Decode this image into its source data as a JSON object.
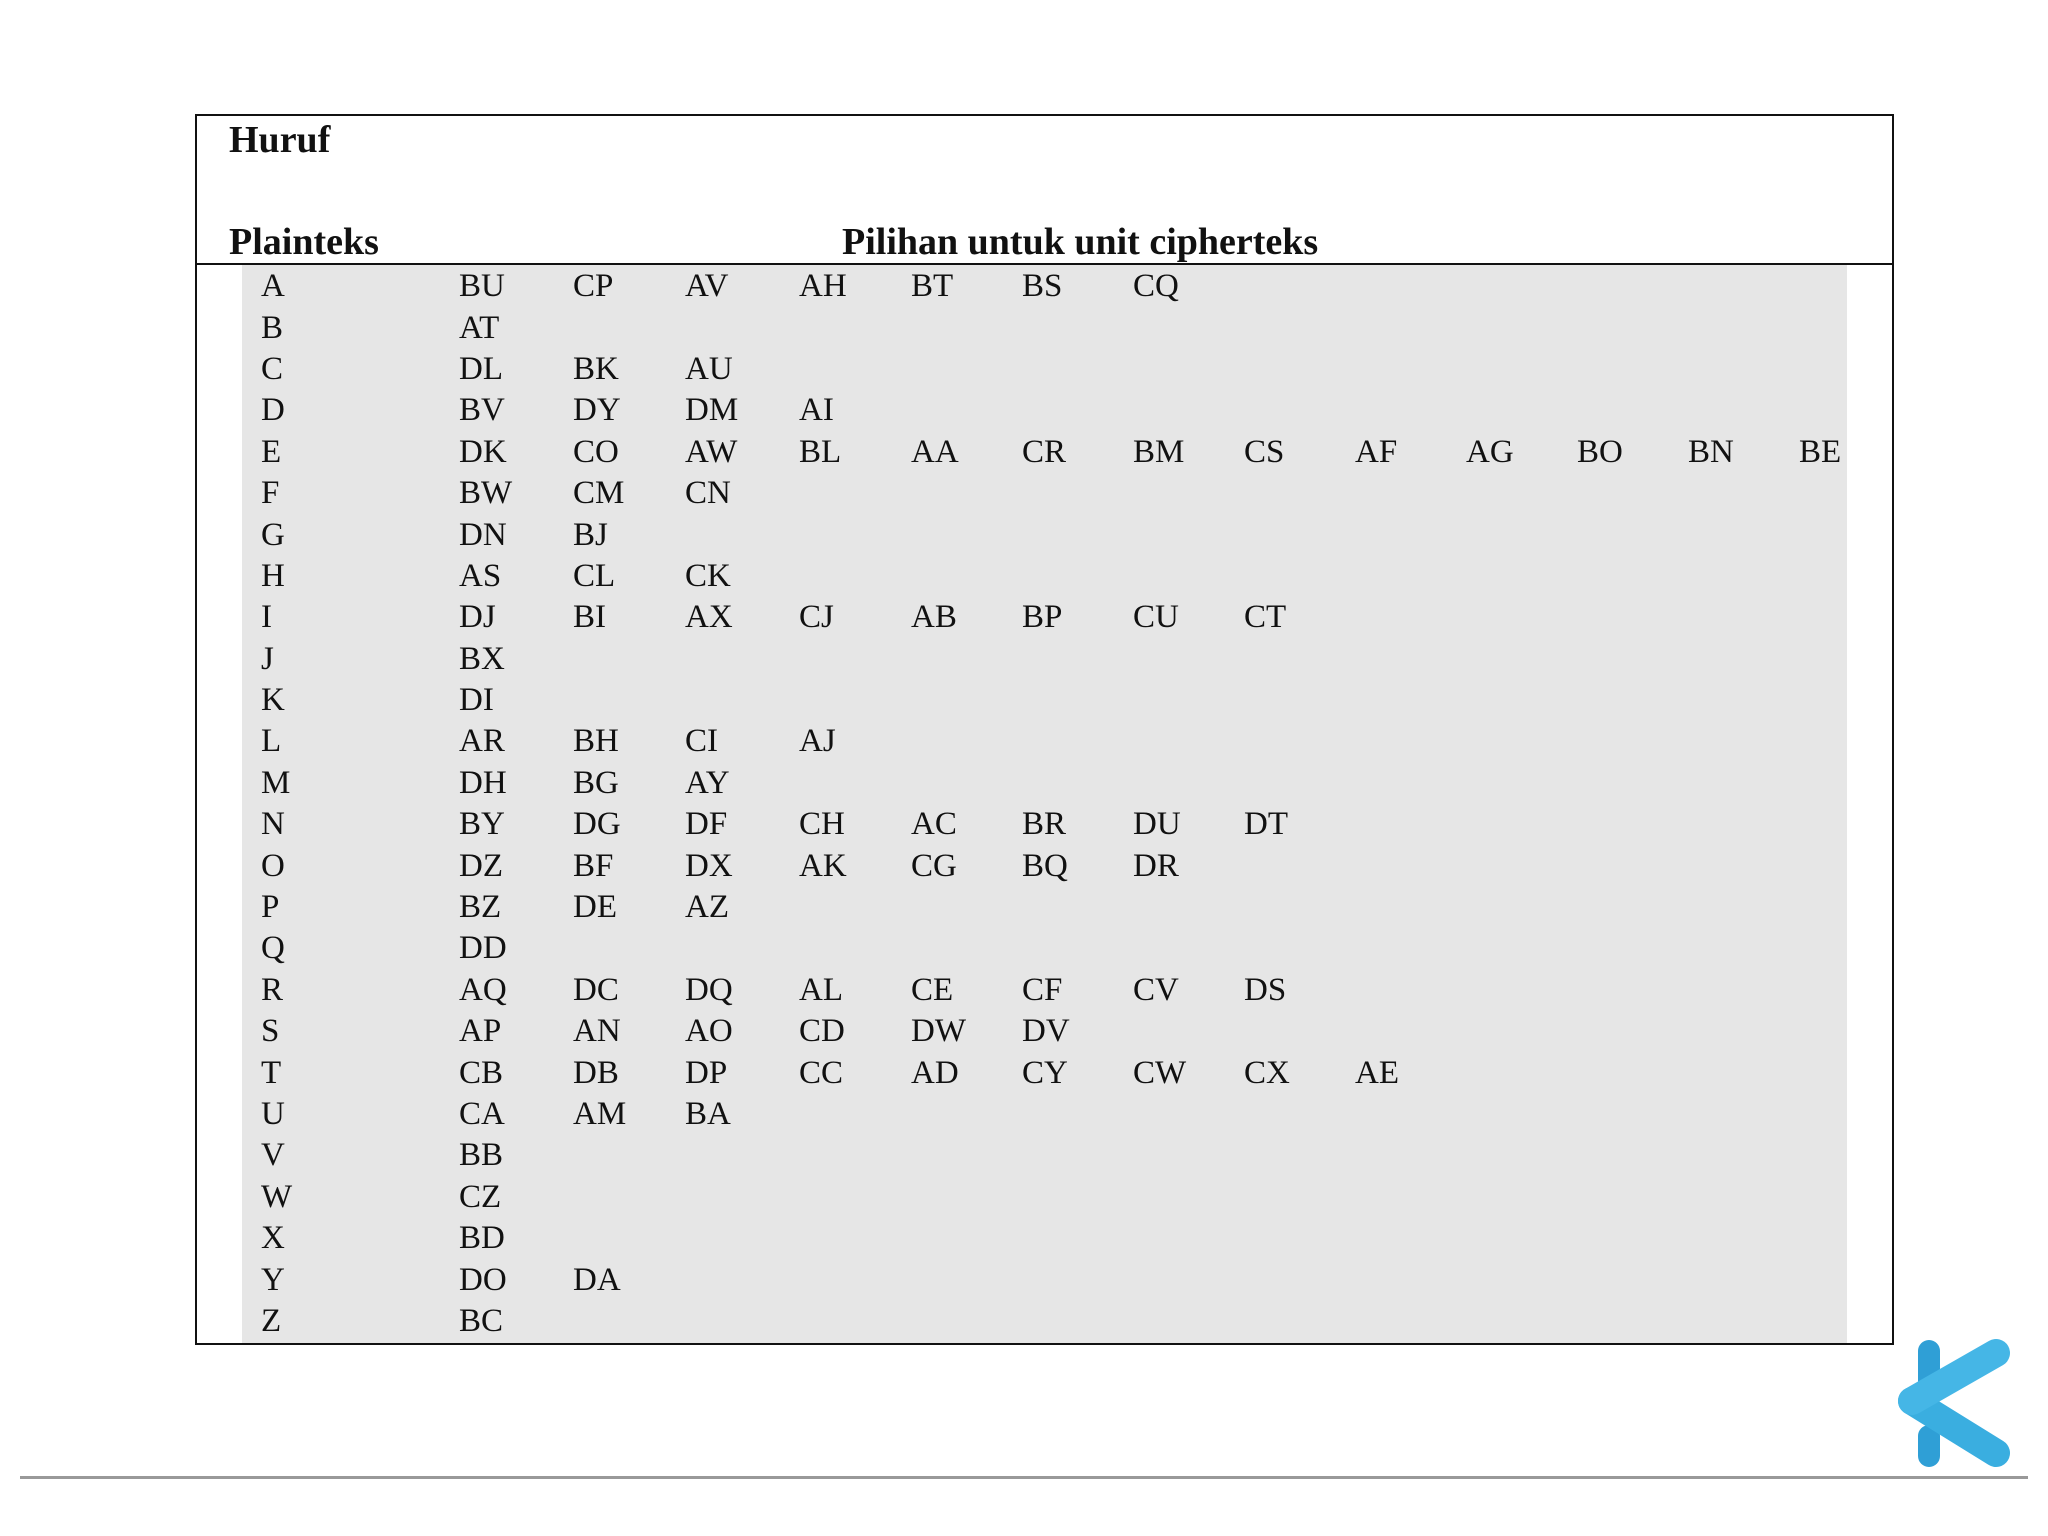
{
  "header": {
    "title": "Huruf",
    "plain_label": "Plainteks",
    "options_label": "Pilihan untuk unit cipherteks"
  },
  "rows": [
    {
      "plain": "A",
      "cipher": [
        "BU",
        "CP",
        "AV",
        "AH",
        "BT",
        "BS",
        "CQ"
      ]
    },
    {
      "plain": "B",
      "cipher": [
        "AT"
      ]
    },
    {
      "plain": "C",
      "cipher": [
        "DL",
        "BK",
        "AU"
      ]
    },
    {
      "plain": "D",
      "cipher": [
        "BV",
        "DY",
        "DM",
        "AI"
      ]
    },
    {
      "plain": "E",
      "cipher": [
        "DK",
        "CO",
        "AW",
        "BL",
        "AA",
        "CR",
        "BM",
        "CS",
        "AF",
        "AG",
        "BO",
        "BN",
        "BE"
      ]
    },
    {
      "plain": "F",
      "cipher": [
        "BW",
        "CM",
        "CN"
      ]
    },
    {
      "plain": "G",
      "cipher": [
        "DN",
        "BJ"
      ]
    },
    {
      "plain": "H",
      "cipher": [
        "AS",
        "CL",
        "CK"
      ]
    },
    {
      "plain": "I",
      "cipher": [
        "DJ",
        "BI",
        "AX",
        "CJ",
        "AB",
        "BP",
        "CU",
        "CT"
      ]
    },
    {
      "plain": "J",
      "cipher": [
        "BX"
      ]
    },
    {
      "plain": "K",
      "cipher": [
        "DI"
      ]
    },
    {
      "plain": "L",
      "cipher": [
        "AR",
        "BH",
        "CI",
        "AJ"
      ]
    },
    {
      "plain": "M",
      "cipher": [
        "DH",
        "BG",
        "AY"
      ]
    },
    {
      "plain": "N",
      "cipher": [
        "BY",
        "DG",
        "DF",
        "CH",
        "AC",
        "BR",
        "DU",
        "DT"
      ]
    },
    {
      "plain": "O",
      "cipher": [
        "DZ",
        "BF",
        "DX",
        "AK",
        "CG",
        "BQ",
        "DR"
      ]
    },
    {
      "plain": "P",
      "cipher": [
        "BZ",
        "DE",
        "AZ"
      ]
    },
    {
      "plain": "Q",
      "cipher": [
        "DD"
      ]
    },
    {
      "plain": "R",
      "cipher": [
        "AQ",
        "DC",
        "DQ",
        "AL",
        "CE",
        "CF",
        "CV",
        "DS"
      ]
    },
    {
      "plain": "S",
      "cipher": [
        "AP",
        "AN",
        "AO",
        "CD",
        "DW",
        "DV"
      ]
    },
    {
      "plain": "T",
      "cipher": [
        "CB",
        "DB",
        "DP",
        "CC",
        "AD",
        "CY",
        "CW",
        "CX",
        "AE"
      ]
    },
    {
      "plain": "U",
      "cipher": [
        "CA",
        "AM",
        "BA"
      ]
    },
    {
      "plain": "V",
      "cipher": [
        "BB"
      ]
    },
    {
      "plain": "W",
      "cipher": [
        "CZ"
      ]
    },
    {
      "plain": "X",
      "cipher": [
        "BD"
      ]
    },
    {
      "plain": "Y",
      "cipher": [
        "DO",
        "DA"
      ]
    },
    {
      "plain": "Z",
      "cipher": [
        "BC"
      ]
    }
  ],
  "colors": {
    "table_bg": "#e6e6e6",
    "logo": "#3aaee0"
  },
  "logo": {
    "icon": "k-logo-icon"
  }
}
